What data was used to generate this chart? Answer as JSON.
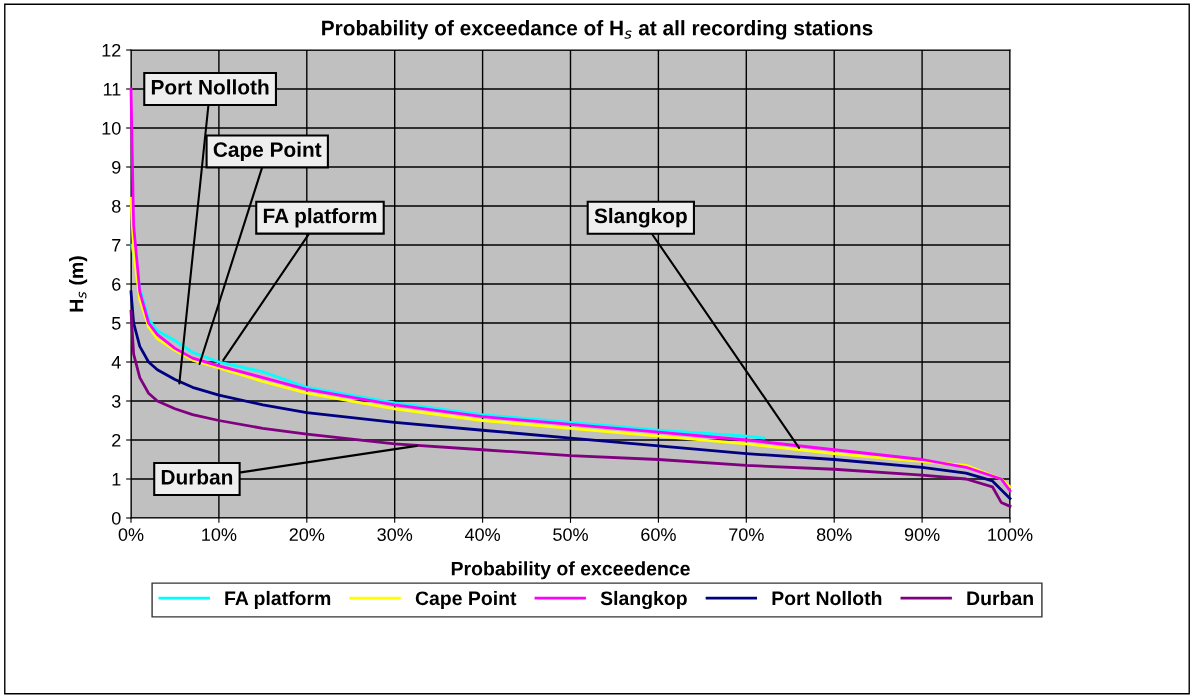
{
  "chart_data": {
    "type": "line",
    "title": "Probability of exceedance of H$_{s}$ at all recording stations",
    "xlabel": "Probability of exceedence",
    "ylabel": "H$_{s}$ (m)",
    "xlim": [
      0,
      100
    ],
    "ylim": [
      0,
      12
    ],
    "xticks": [
      {
        "value": 0,
        "label": "0%"
      },
      {
        "value": 10,
        "label": "10%"
      },
      {
        "value": 20,
        "label": "20%"
      },
      {
        "value": 30,
        "label": "30%"
      },
      {
        "value": 40,
        "label": "40%"
      },
      {
        "value": 50,
        "label": "50%"
      },
      {
        "value": 60,
        "label": "60%"
      },
      {
        "value": 70,
        "label": "70%"
      },
      {
        "value": 80,
        "label": "80%"
      },
      {
        "value": 90,
        "label": "90%"
      },
      {
        "value": 100,
        "label": "100%"
      }
    ],
    "yticks": [
      0,
      1,
      2,
      3,
      4,
      5,
      6,
      7,
      8,
      9,
      10,
      11,
      12
    ],
    "grid": true,
    "legend": "bottom",
    "marker": "none",
    "line_style": "solid",
    "series": [
      {
        "name": "FA platform",
        "color": "#00ffff",
        "x": [
          0.1,
          1,
          2,
          3,
          5,
          7,
          10,
          15,
          20,
          30,
          40,
          50,
          60,
          70,
          72
        ],
        "values": [
          7.0,
          5.9,
          5.1,
          4.8,
          4.55,
          4.25,
          4.0,
          3.75,
          3.35,
          2.95,
          2.65,
          2.45,
          2.25,
          2.1,
          2.05
        ]
      },
      {
        "name": "Cape Point",
        "color": "#ffff00",
        "x": [
          0,
          0.3,
          1,
          2,
          3,
          5,
          7,
          10,
          15,
          20,
          30,
          40,
          50,
          60,
          70,
          80,
          90,
          95,
          99,
          100
        ],
        "values": [
          8.2,
          6.8,
          5.6,
          4.9,
          4.6,
          4.3,
          4.05,
          3.85,
          3.5,
          3.2,
          2.8,
          2.5,
          2.3,
          2.1,
          1.9,
          1.65,
          1.45,
          1.35,
          1.0,
          0.8
        ]
      },
      {
        "name": "Slangkop",
        "color": "#ff00ff",
        "x": [
          0,
          0.3,
          1,
          2,
          3,
          5,
          7,
          10,
          15,
          20,
          30,
          40,
          50,
          60,
          70,
          80,
          90,
          95,
          99,
          100
        ],
        "values": [
          11,
          7.5,
          5.8,
          5.0,
          4.7,
          4.35,
          4.1,
          3.9,
          3.6,
          3.3,
          2.9,
          2.6,
          2.4,
          2.2,
          2.0,
          1.75,
          1.5,
          1.3,
          1.0,
          0.7
        ]
      },
      {
        "name": "Port Nolloth",
        "color": "#000080",
        "x": [
          0,
          0.3,
          1,
          2,
          3,
          5,
          7,
          10,
          15,
          20,
          30,
          40,
          50,
          60,
          70,
          80,
          90,
          95,
          98,
          100
        ],
        "values": [
          5.8,
          5.0,
          4.4,
          4.0,
          3.8,
          3.55,
          3.35,
          3.15,
          2.9,
          2.7,
          2.45,
          2.25,
          2.05,
          1.85,
          1.65,
          1.5,
          1.3,
          1.15,
          0.95,
          0.5
        ]
      },
      {
        "name": "Durban",
        "color": "#800080",
        "x": [
          0,
          0.3,
          1,
          2,
          3,
          5,
          7,
          10,
          15,
          20,
          30,
          40,
          50,
          60,
          70,
          80,
          90,
          95,
          98,
          99,
          100
        ],
        "values": [
          5.3,
          4.2,
          3.6,
          3.2,
          3.0,
          2.8,
          2.65,
          2.5,
          2.3,
          2.15,
          1.9,
          1.75,
          1.6,
          1.5,
          1.35,
          1.25,
          1.1,
          1.0,
          0.8,
          0.4,
          0.3
        ]
      }
    ],
    "annotations": [
      {
        "text": "Port Nolloth",
        "x": 5.5,
        "y": 3.45
      },
      {
        "text": "Cape Point",
        "x": 7.8,
        "y": 3.95
      },
      {
        "text": "FA platform",
        "x": 10.5,
        "y": 4.05
      },
      {
        "text": "Slangkop",
        "x": 76,
        "y": 1.8
      },
      {
        "text": "Durban",
        "x": 32.5,
        "y": 1.85
      }
    ]
  }
}
